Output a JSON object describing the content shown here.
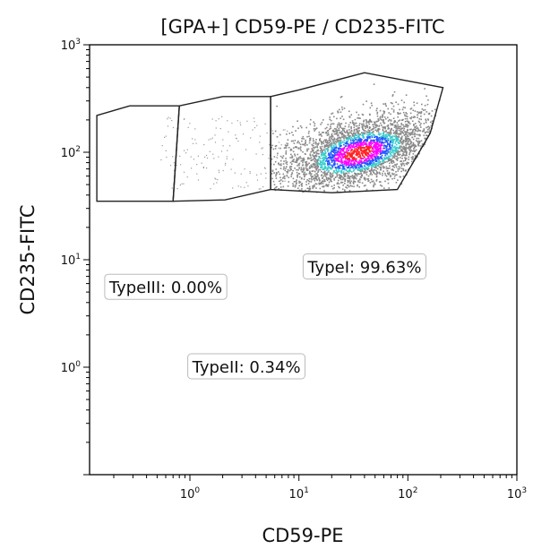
{
  "chart_data": {
    "type": "scatter",
    "title": "[GPA+] CD59-PE / CD235-FITC",
    "xlabel": "CD59-PE",
    "ylabel": "CD235-FITC",
    "x_scale": "log",
    "y_scale": "log",
    "xlim": [
      0.12,
      1000
    ],
    "ylim": [
      0.1,
      1000
    ],
    "x_ticks": [
      {
        "value": 1,
        "base": "10",
        "exp": "0"
      },
      {
        "value": 10,
        "base": "10",
        "exp": "1"
      },
      {
        "value": 100,
        "base": "10",
        "exp": "2"
      },
      {
        "value": 1000,
        "base": "10",
        "exp": "3"
      }
    ],
    "y_ticks": [
      {
        "value": 1,
        "base": "10",
        "exp": "0"
      },
      {
        "value": 10,
        "base": "10",
        "exp": "1"
      },
      {
        "value": 100,
        "base": "10",
        "exp": "2"
      },
      {
        "value": 1000,
        "base": "10",
        "exp": "3"
      }
    ],
    "population": {
      "center": [
        35,
        100
      ],
      "spread_log": [
        0.38,
        0.19
      ],
      "density_colors": [
        "#888888",
        "#33cccc",
        "#2255ff",
        "#ff00ff",
        "#ff2222"
      ]
    },
    "gates": [
      {
        "name": "TypeIII",
        "label": "TypeIII: 0.00%",
        "label_pos": [
          0.6,
          5.5
        ],
        "polygon": [
          [
            0.14,
            35
          ],
          [
            0.7,
            35
          ],
          [
            0.8,
            270
          ],
          [
            0.28,
            270
          ],
          [
            0.14,
            220
          ]
        ]
      },
      {
        "name": "TypeII",
        "label": "TypeII: 0.34%",
        "label_pos": [
          3.3,
          1.0
        ],
        "polygon": [
          [
            0.7,
            35
          ],
          [
            2.1,
            36
          ],
          [
            5.5,
            45
          ],
          [
            5.5,
            330
          ],
          [
            2.0,
            330
          ],
          [
            0.8,
            270
          ]
        ]
      },
      {
        "name": "TypeI",
        "label": "TypeI: 99.63%",
        "label_pos": [
          40,
          8.5
        ],
        "polygon": [
          [
            5.5,
            45
          ],
          [
            20,
            42
          ],
          [
            80,
            45
          ],
          [
            160,
            150
          ],
          [
            210,
            400
          ],
          [
            40,
            550
          ],
          [
            10,
            380
          ],
          [
            5.5,
            330
          ]
        ]
      }
    ]
  }
}
